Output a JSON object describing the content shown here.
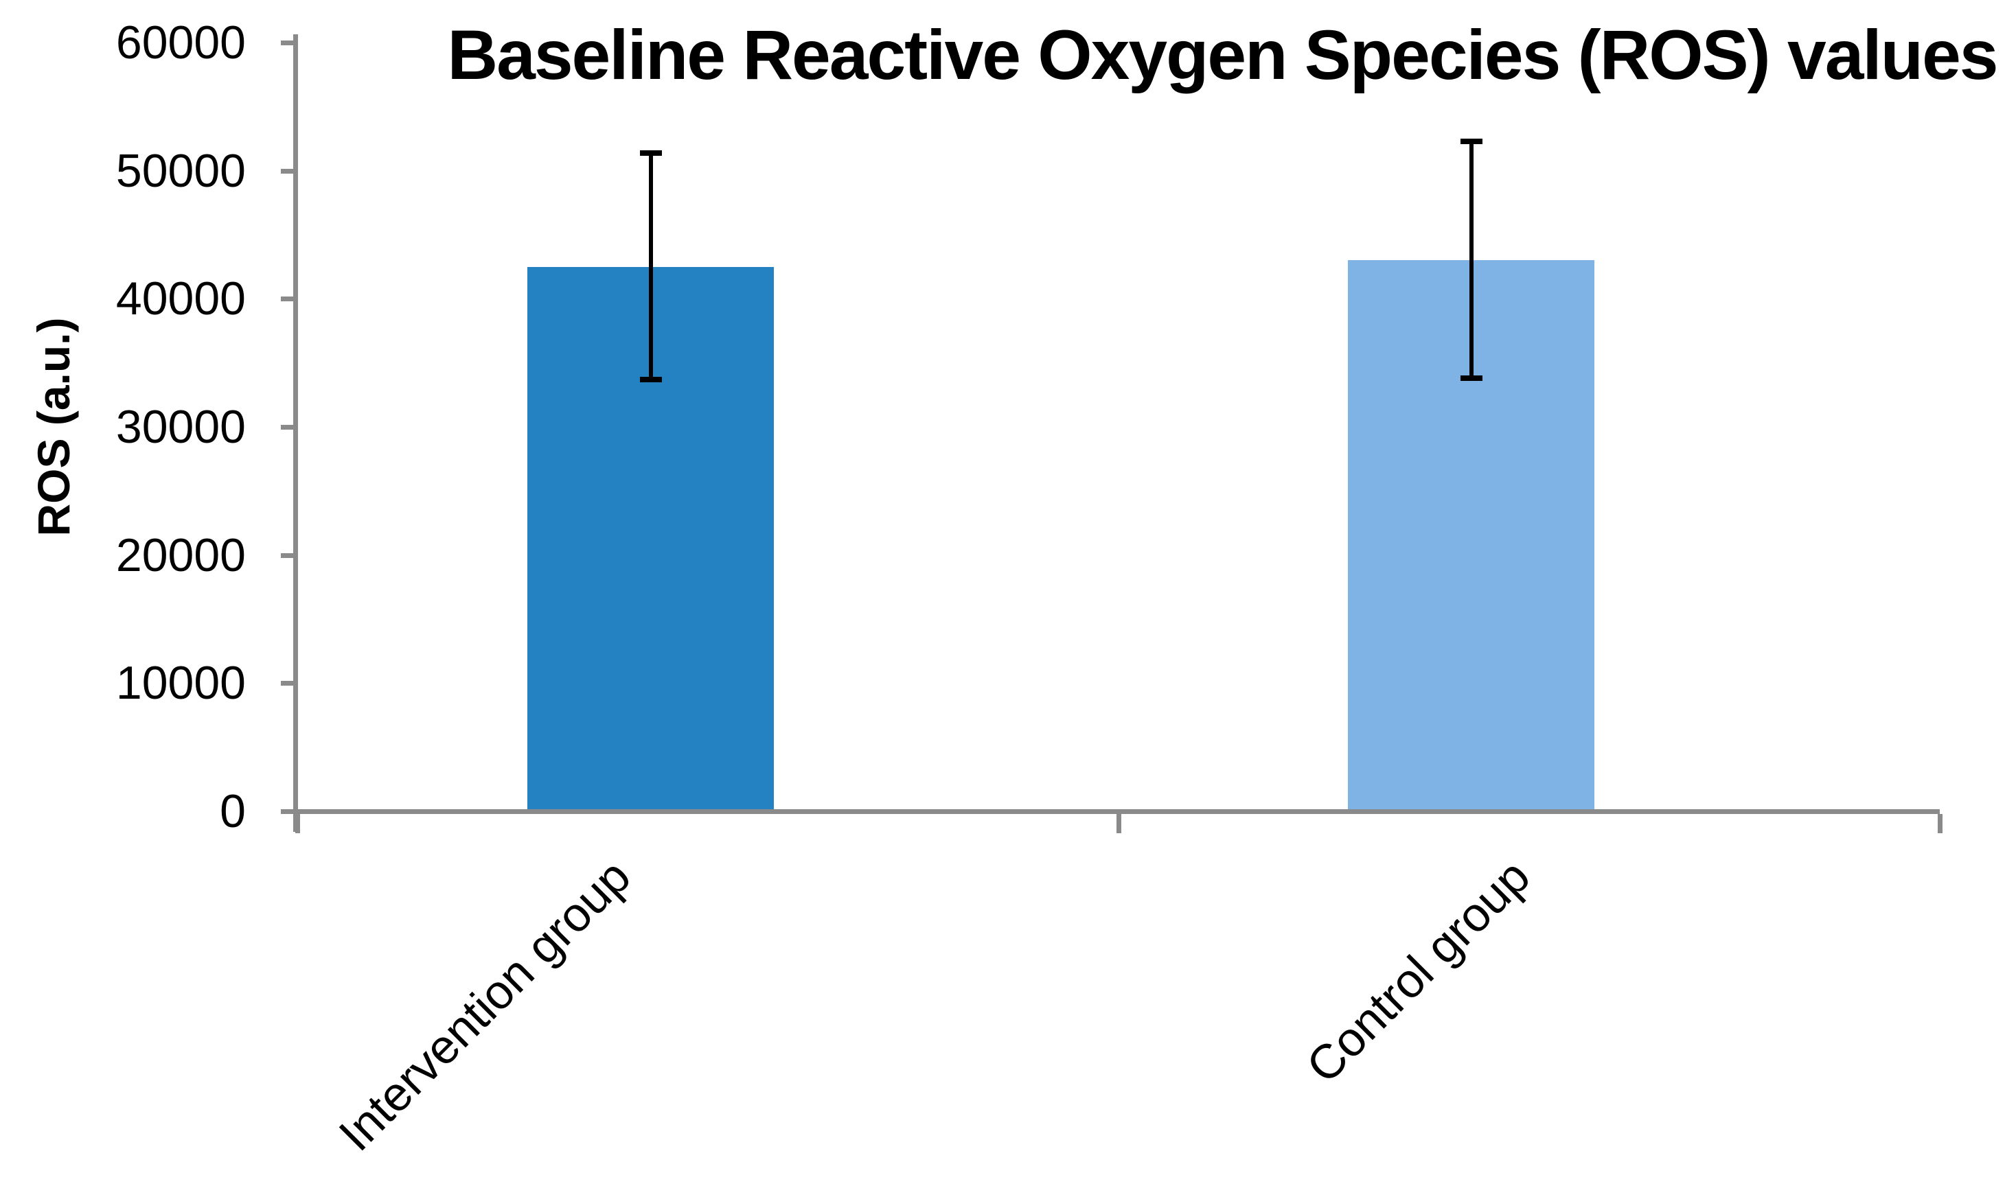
{
  "chart_data": {
    "type": "bar",
    "title": "Baseline Reactive Oxygen Species (ROS) values",
    "ylabel": "ROS (a.u.)",
    "xlabel": "",
    "categories": [
      "Intervention group",
      "Control group"
    ],
    "values": [
      42500,
      43000
    ],
    "error_bars": {
      "upper_whisker": [
        51600,
        52500
      ],
      "lower_whisker": [
        33500,
        33600
      ]
    },
    "ylim": [
      0,
      60000
    ],
    "yticks": [
      0,
      10000,
      20000,
      30000,
      40000,
      50000,
      60000
    ],
    "grid": "off",
    "legend": "none",
    "bar_colors": [
      "#2482C2",
      "#7FB2E5"
    ],
    "axis_color": "#8A8A8A",
    "error_bar_color": "#000000",
    "text_color": "#000000"
  }
}
